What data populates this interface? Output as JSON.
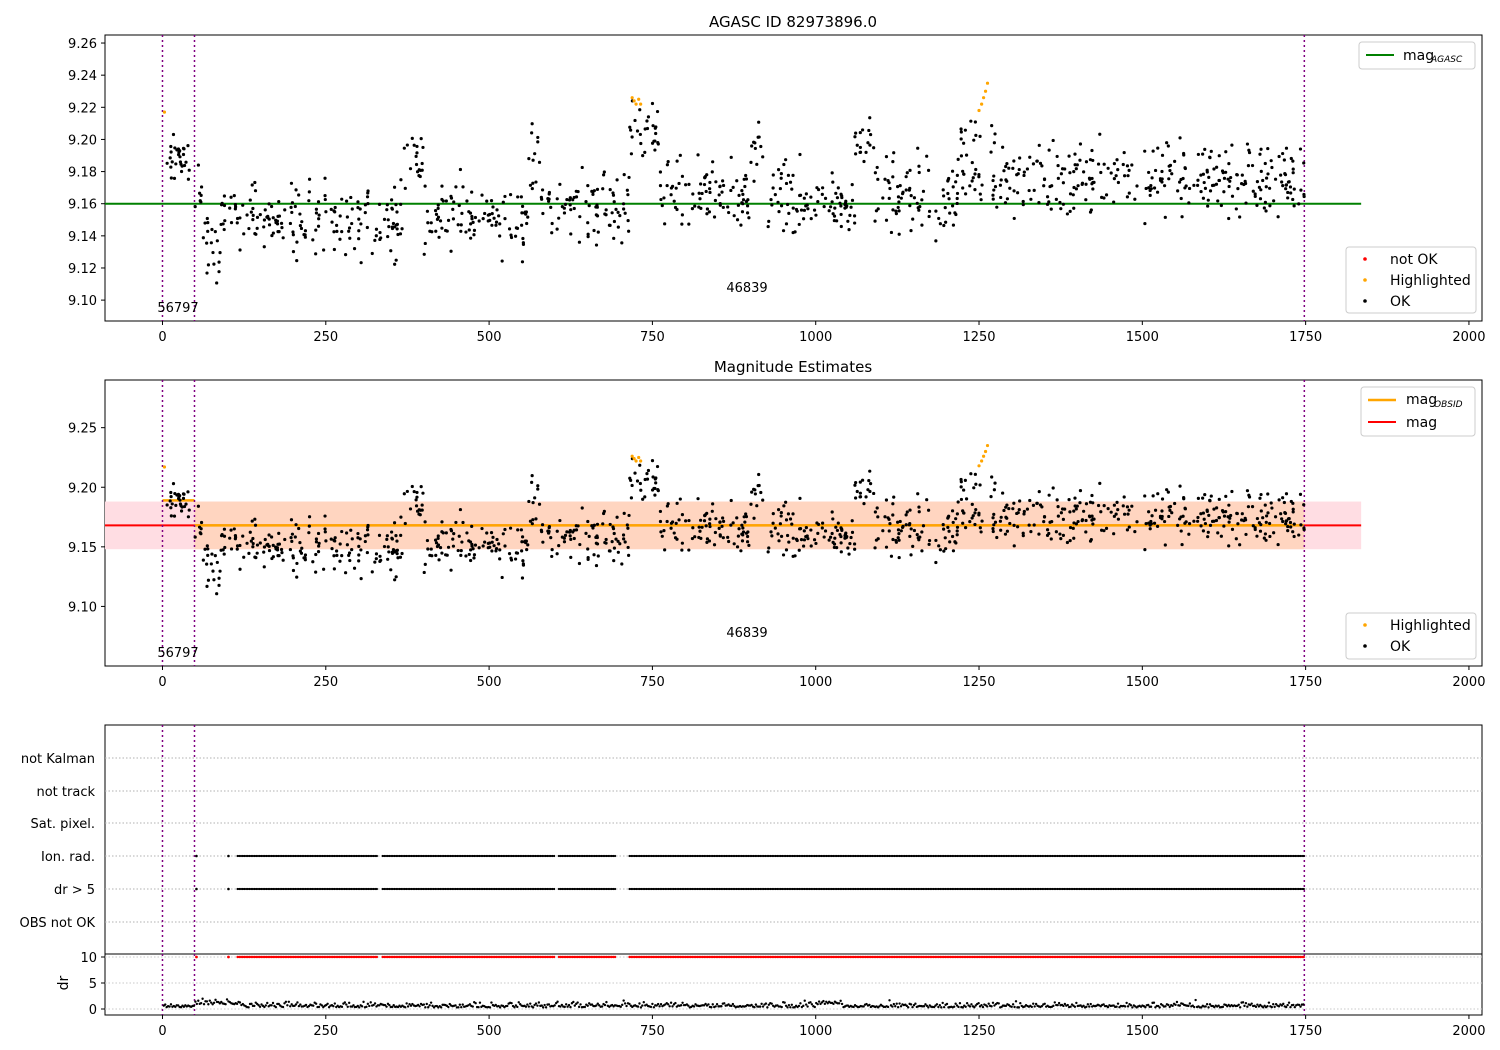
{
  "figure": {
    "panel1_title": "AGASC ID 82973896.0",
    "panel2_title": "Magnitude Estimates",
    "obsid_labels": [
      "56797",
      "46839"
    ],
    "xlim": [
      -88,
      2020
    ],
    "x_ticks": [
      0,
      250,
      500,
      750,
      1000,
      1250,
      1500,
      1750,
      2000
    ],
    "obs_boundaries": [
      0,
      49,
      1748
    ],
    "colors": {
      "ok": "#000000",
      "highlighted": "#ffa500",
      "not_ok": "#ff0000",
      "mag_agasc": "#008000",
      "mag_obsid": "#ffa500",
      "mag": "#ff0000",
      "band_outer": "#ffdde3",
      "band_inner": "#ffd5c0",
      "boundary": "#800080"
    }
  },
  "chart_data": [
    {
      "type": "scatter",
      "title": "AGASC ID 82973896.0",
      "xlabel": "",
      "ylabel": "",
      "ylim": [
        9.087,
        9.265
      ],
      "y_ticks": [
        "9.10",
        "9.12",
        "9.14",
        "9.16",
        "9.18",
        "9.20",
        "9.22",
        "9.24",
        "9.26"
      ],
      "mag_agasc": 9.16,
      "mag_agasc_x_range": [
        -88,
        1835
      ],
      "legend_top": "top-right",
      "legend_top_entries": [
        {
          "label": "mag",
          "sub": "AGASC",
          "color": "#008000"
        }
      ],
      "legend_bottom": "lower-right",
      "legend_bottom_entries": [
        {
          "label": "not OK",
          "color": "#ff0000"
        },
        {
          "label": "Highlighted",
          "color": "#ffa500"
        },
        {
          "label": "OK",
          "color": "#000000"
        }
      ],
      "obsid_label_positions": [
        {
          "text": "56797",
          "x": 22,
          "y": 9.094
        },
        {
          "text": "46839",
          "x": 900,
          "y": 9.106
        }
      ],
      "series": [
        {
          "name": "Highlighted",
          "points": [
            [
              3,
              9.217
            ],
            [
              719,
              9.226
            ],
            [
              722,
              9.224
            ],
            [
              725,
              9.222
            ],
            [
              729,
              9.225
            ],
            [
              732,
              9.222
            ],
            [
              1250,
              9.218
            ],
            [
              1254,
              9.222
            ],
            [
              1257,
              9.226
            ],
            [
              1260,
              9.23
            ],
            [
              1263,
              9.235
            ]
          ]
        }
      ]
    },
    {
      "type": "scatter",
      "title": "Magnitude Estimates",
      "xlabel": "",
      "ylabel": "",
      "ylim": [
        9.05,
        9.29
      ],
      "y_ticks": [
        "9.10",
        "9.15",
        "9.20",
        "9.25"
      ],
      "mag": 9.168,
      "mag_x_range": [
        -88,
        1835
      ],
      "mag_band_outer": [
        9.148,
        9.188
      ],
      "mag_band_inner": [
        9.148,
        9.188
      ],
      "mag_band_inner_x_range": [
        49,
        1748
      ],
      "mag_obsid": [
        {
          "x_range": [
            0,
            49
          ],
          "value": 9.189
        },
        {
          "x_range": [
            49,
            1748
          ],
          "value": 9.168
        }
      ],
      "legend_top": "top-right",
      "legend_top_entries": [
        {
          "label": "mag",
          "sub": "OBSID",
          "color": "#ffa500"
        },
        {
          "label": "mag",
          "sub": "",
          "color": "#ff0000"
        }
      ],
      "legend_bottom": "lower-right",
      "legend_bottom_entries": [
        {
          "label": "Highlighted",
          "color": "#ffa500"
        },
        {
          "label": "OK",
          "color": "#000000"
        }
      ],
      "obsid_label_positions": [
        {
          "text": "56797",
          "x": 22,
          "y": 9.056
        },
        {
          "text": "46839",
          "x": 900,
          "y": 9.076
        }
      ]
    },
    {
      "type": "scatter",
      "title": "",
      "xlabel": "",
      "ylabel": "",
      "flag_rows": [
        "not Kalman",
        "not track",
        "Sat. pixel.",
        "Ion. rad.",
        "dr > 5",
        "OBS not OK"
      ],
      "flagged_rows": [
        "Ion. rad.",
        "dr > 5"
      ],
      "flag_sparse_x": [
        52,
        101
      ],
      "flag_segments": [
        [
          115,
          330
        ],
        [
          337,
          600
        ],
        [
          607,
          695
        ],
        [
          715,
          1748
        ]
      ],
      "dr_ylabel": "dr",
      "dr_ylim": [
        -0.5,
        11
      ],
      "dr_y_ticks": [
        "0",
        "5",
        "10"
      ],
      "dr_clip": 10,
      "dr_clip_red_x_sparse": [
        52,
        101
      ],
      "dr_clip_red_segments": [
        [
          115,
          330
        ],
        [
          337,
          600
        ],
        [
          607,
          695
        ],
        [
          715,
          1748
        ]
      ]
    }
  ]
}
